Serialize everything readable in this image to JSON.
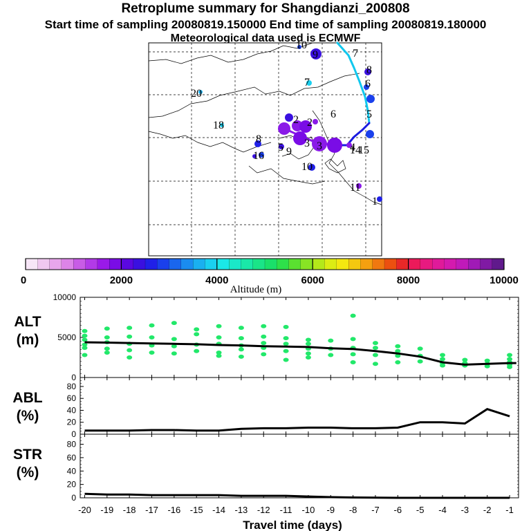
{
  "header": {
    "title": "Retroplume summary for Shangdianzi_200808",
    "line2": "Start time of sampling 20080819.150000     End time of sampling 20080819.180000",
    "line3": "Meteorological data used is ECMWF"
  },
  "colors": {
    "axis": "#000000",
    "grid": "#000000",
    "alt_dots": "#22e86a",
    "line": "#000000",
    "trajectory_upper": "#11c8ee",
    "trajectory_lower": "#1a1ae0"
  },
  "map": {
    "labels": [
      {
        "text": "10",
        "kind": "top"
      },
      {
        "text": "9",
        "kind": "dot"
      },
      {
        "text": "7",
        "kind": "traj"
      },
      {
        "text": "8",
        "kind": "dot"
      },
      {
        "text": "7",
        "kind": "dot"
      },
      {
        "text": "6",
        "kind": "dot"
      },
      {
        "text": "20",
        "kind": "dot"
      },
      {
        "text": "6",
        "kind": "dot"
      },
      {
        "text": "5",
        "kind": "traj"
      },
      {
        "text": "18",
        "kind": "dot"
      },
      {
        "text": "2",
        "kind": "dot"
      },
      {
        "text": "2",
        "kind": "dot"
      },
      {
        "text": "3",
        "kind": "dot"
      },
      {
        "text": "8",
        "kind": "dot"
      },
      {
        "text": "5",
        "kind": "dot"
      },
      {
        "text": "9",
        "kind": "dot"
      },
      {
        "text": "3",
        "kind": "dot"
      },
      {
        "text": "4",
        "kind": "dot"
      },
      {
        "text": "16",
        "kind": "dot"
      },
      {
        "text": "15",
        "kind": "dot"
      },
      {
        "text": "14",
        "kind": "dot"
      },
      {
        "text": "10",
        "kind": "dot"
      },
      {
        "text": "11",
        "kind": "dot"
      },
      {
        "text": "1",
        "kind": "dot"
      }
    ]
  },
  "colorbar": {
    "ticks": [
      "0",
      "2000",
      "4000",
      "6000",
      "8000",
      "10000"
    ],
    "label": "Altitude (m)",
    "colors": [
      "#f7e6f7",
      "#f0c8f0",
      "#e8a6ec",
      "#dc84e8",
      "#c85ce6",
      "#b23ae8",
      "#9a1ae8",
      "#7a0ce6",
      "#5a08e0",
      "#3a10e0",
      "#2020e8",
      "#1a40ec",
      "#1a66ee",
      "#1a8cf0",
      "#1ab0f0",
      "#1ad0f0",
      "#1ae8e8",
      "#1ae8c8",
      "#1ae8a8",
      "#1ae488",
      "#1ae06a",
      "#2ee04a",
      "#5ae030",
      "#88e424",
      "#b4e81a",
      "#dcec14",
      "#f4e810",
      "#f4c810",
      "#f4a010",
      "#f07810",
      "#ec5010",
      "#e82828",
      "#ec1a5a",
      "#e81a80",
      "#e01a9a",
      "#d41aae",
      "#c01aba",
      "#a01ab6",
      "#801aa4",
      "#601a8c"
    ]
  },
  "chart_data": [
    {
      "type": "scatter",
      "name": "ALT",
      "ylabel": "ALT\n(m)",
      "ylabel_line1": "ALT",
      "ylabel_line2": "(m)",
      "yticks": [
        "10000",
        "5000",
        "0"
      ],
      "ylim": [
        0,
        10000
      ],
      "xlim": [
        -20.2,
        -0.6
      ],
      "mean_line": {
        "x": [
          -20,
          -19,
          -18,
          -17,
          -16,
          -15,
          -14,
          -13,
          -12,
          -11,
          -10,
          -9,
          -8,
          -7,
          -6,
          -5,
          -4,
          -3,
          -2,
          -1,
          -0.7
        ],
        "y": [
          4400,
          4350,
          4300,
          4250,
          4200,
          4150,
          4050,
          4000,
          3900,
          3850,
          3800,
          3650,
          3550,
          3300,
          3000,
          2600,
          1900,
          1600,
          1700,
          1800,
          1800
        ]
      },
      "points": [
        {
          "x": -20,
          "y": 5800
        },
        {
          "x": -20,
          "y": 5200
        },
        {
          "x": -20,
          "y": 4700
        },
        {
          "x": -20,
          "y": 4100
        },
        {
          "x": -20,
          "y": 3700
        },
        {
          "x": -20,
          "y": 2800
        },
        {
          "x": -19,
          "y": 6100
        },
        {
          "x": -19,
          "y": 5000
        },
        {
          "x": -19,
          "y": 4400
        },
        {
          "x": -19,
          "y": 3600
        },
        {
          "x": -19,
          "y": 3100
        },
        {
          "x": -18,
          "y": 6200
        },
        {
          "x": -18,
          "y": 5100
        },
        {
          "x": -18,
          "y": 4200
        },
        {
          "x": -18,
          "y": 3400
        },
        {
          "x": -18,
          "y": 2500
        },
        {
          "x": -17,
          "y": 6500
        },
        {
          "x": -17,
          "y": 5000
        },
        {
          "x": -17,
          "y": 4000
        },
        {
          "x": -17,
          "y": 3100
        },
        {
          "x": -16,
          "y": 6800
        },
        {
          "x": -16,
          "y": 4800
        },
        {
          "x": -16,
          "y": 3900
        },
        {
          "x": -16,
          "y": 3000
        },
        {
          "x": -15,
          "y": 6000
        },
        {
          "x": -15,
          "y": 5400
        },
        {
          "x": -15,
          "y": 4100
        },
        {
          "x": -15,
          "y": 3300
        },
        {
          "x": -14,
          "y": 6400
        },
        {
          "x": -14,
          "y": 5000
        },
        {
          "x": -14,
          "y": 4200
        },
        {
          "x": -14,
          "y": 3100
        },
        {
          "x": -14,
          "y": 2700
        },
        {
          "x": -13,
          "y": 6200
        },
        {
          "x": -13,
          "y": 4900
        },
        {
          "x": -13,
          "y": 4000
        },
        {
          "x": -13,
          "y": 3500
        },
        {
          "x": -13,
          "y": 2600
        },
        {
          "x": -12,
          "y": 6400
        },
        {
          "x": -12,
          "y": 5100
        },
        {
          "x": -12,
          "y": 4300
        },
        {
          "x": -12,
          "y": 3700
        },
        {
          "x": -12,
          "y": 2900
        },
        {
          "x": -11,
          "y": 6300
        },
        {
          "x": -11,
          "y": 4900
        },
        {
          "x": -11,
          "y": 4200
        },
        {
          "x": -11,
          "y": 3300
        },
        {
          "x": -11,
          "y": 2200
        },
        {
          "x": -10,
          "y": 4700
        },
        {
          "x": -10,
          "y": 4200
        },
        {
          "x": -10,
          "y": 3600
        },
        {
          "x": -10,
          "y": 3000
        },
        {
          "x": -10,
          "y": 2500
        },
        {
          "x": -9,
          "y": 4600
        },
        {
          "x": -9,
          "y": 3600
        },
        {
          "x": -9,
          "y": 2800
        },
        {
          "x": -8,
          "y": 7700
        },
        {
          "x": -8,
          "y": 4800
        },
        {
          "x": -8,
          "y": 3700
        },
        {
          "x": -8,
          "y": 2900
        },
        {
          "x": -8,
          "y": 1900
        },
        {
          "x": -7,
          "y": 4300
        },
        {
          "x": -7,
          "y": 3700
        },
        {
          "x": -7,
          "y": 2800
        },
        {
          "x": -7,
          "y": 1700
        },
        {
          "x": -6,
          "y": 3900
        },
        {
          "x": -6,
          "y": 3300
        },
        {
          "x": -6,
          "y": 2700
        },
        {
          "x": -6,
          "y": 1900
        },
        {
          "x": -5,
          "y": 3600
        },
        {
          "x": -5,
          "y": 2700
        },
        {
          "x": -5,
          "y": 2000
        },
        {
          "x": -4,
          "y": 2800
        },
        {
          "x": -4,
          "y": 2300
        },
        {
          "x": -4,
          "y": 1800
        },
        {
          "x": -4,
          "y": 1500
        },
        {
          "x": -3,
          "y": 2200
        },
        {
          "x": -3,
          "y": 1800
        },
        {
          "x": -3,
          "y": 1500
        },
        {
          "x": -2,
          "y": 2100
        },
        {
          "x": -2,
          "y": 1700
        },
        {
          "x": -2,
          "y": 1400
        },
        {
          "x": -1,
          "y": 2800
        },
        {
          "x": -1,
          "y": 2300
        },
        {
          "x": -1,
          "y": 1900
        },
        {
          "x": -1,
          "y": 1600
        },
        {
          "x": -1,
          "y": 1300
        }
      ]
    },
    {
      "type": "line",
      "name": "ABL",
      "ylabel_line1": "ABL",
      "ylabel_line2": "(%)",
      "yticks": [
        "80",
        "60",
        "40",
        "20",
        "0"
      ],
      "ylim": [
        0,
        95
      ],
      "xlim": [
        -20.2,
        -0.6
      ],
      "x": [
        -20,
        -19,
        -18,
        -17,
        -16,
        -15,
        -14,
        -13,
        -12,
        -11,
        -10,
        -9,
        -8,
        -7,
        -6,
        -5,
        -4,
        -3,
        -2,
        -1
      ],
      "y": [
        6,
        6,
        6,
        7,
        7,
        6,
        6,
        9,
        10,
        10,
        11,
        11,
        10,
        10,
        11,
        20,
        20,
        18,
        42,
        30
      ]
    },
    {
      "type": "line",
      "name": "STR",
      "ylabel_line1": "STR",
      "ylabel_line2": "(%)",
      "yticks": [
        "80",
        "60",
        "40",
        "20",
        "0"
      ],
      "ylim": [
        0,
        95
      ],
      "xlim": [
        -20.2,
        -0.6
      ],
      "x": [
        -20,
        -19,
        -18,
        -17,
        -16,
        -15,
        -14,
        -13,
        -12,
        -11,
        -10,
        -9,
        -8,
        -7,
        -6,
        -5,
        -4,
        -3,
        -2,
        -1
      ],
      "y": [
        6,
        5,
        5,
        4,
        4,
        4,
        4,
        3,
        3,
        3,
        2,
        1,
        0.5,
        0.3,
        0,
        0,
        0,
        0,
        0,
        0
      ],
      "xlabel": "Travel time (days)",
      "xticks": [
        "-20",
        "-19",
        "-18",
        "-17",
        "-16",
        "-15",
        "-14",
        "-13",
        "-12",
        "-11",
        "-10",
        "-9",
        "-8",
        "-7",
        "-6",
        "-5",
        "-4",
        "-3",
        "-2",
        "-1"
      ]
    }
  ]
}
